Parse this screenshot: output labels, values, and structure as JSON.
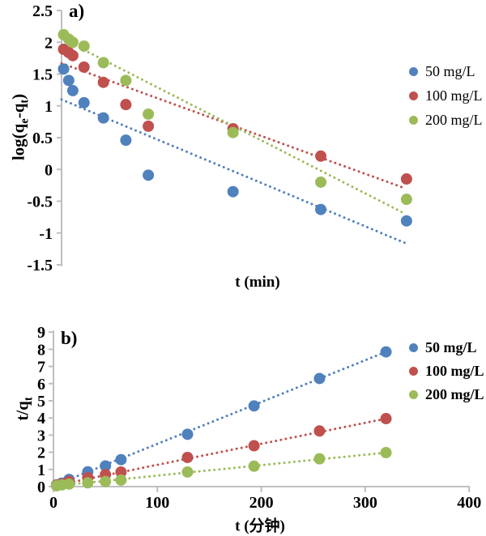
{
  "figure": {
    "background": "#ffffff",
    "text_color": "#000000",
    "axis_color": "#BFBFBF"
  },
  "chart_data": [
    {
      "id": "a",
      "type": "scatter",
      "panel_label": "a)",
      "xlabel": "t (min)",
      "ylabel": "log(qe-qt)",
      "ylabel_parts": [
        {
          "t": "log(q"
        },
        {
          "t": "e",
          "sub": true
        },
        {
          "t": "-q"
        },
        {
          "t": "t",
          "sub": true
        },
        {
          "t": ")"
        }
      ],
      "xlim": [
        0,
        400
      ],
      "ylim": [
        -1.5,
        2.5
      ],
      "grid": false,
      "xticks": [],
      "yticks": [
        {
          "v": 2.5,
          "label": "2.5"
        },
        {
          "v": 2,
          "label": "2"
        },
        {
          "v": 1.5,
          "label": "1.5"
        },
        {
          "v": 1,
          "label": "1"
        },
        {
          "v": 0.5,
          "label": "0.5"
        },
        {
          "v": 0,
          "label": "0"
        },
        {
          "v": -0.5,
          "label": "-0.5"
        },
        {
          "v": -1,
          "label": "-1"
        },
        {
          "v": -1.5,
          "label": "-1.5"
        }
      ],
      "legend_position": "right",
      "legend_bold": false,
      "series": [
        {
          "name": "50 mg/L",
          "color": "#4F81BD",
          "x": [
            2,
            7,
            11,
            22,
            41,
            63,
            85,
            168,
            254,
            338
          ],
          "y": [
            1.58,
            1.4,
            1.24,
            1.05,
            0.81,
            0.46,
            -0.09,
            -0.35,
            -0.63,
            -0.81
          ],
          "trend": {
            "x": [
              0,
              337
            ],
            "y": [
              1.1,
              -1.16
            ]
          }
        },
        {
          "name": "100 mg/L",
          "color": "#C0504D",
          "x": [
            2,
            7,
            11,
            22,
            41,
            63,
            85,
            168,
            254,
            338
          ],
          "y": [
            1.89,
            1.84,
            1.79,
            1.61,
            1.37,
            1.02,
            0.68,
            0.64,
            0.21,
            -0.15
          ],
          "trend": {
            "x": [
              0,
              337
            ],
            "y": [
              1.67,
              -0.3
            ]
          }
        },
        {
          "name": "200 mg/L",
          "color": "#9BBB59",
          "x": [
            2,
            7,
            11,
            22,
            41,
            63,
            85,
            168,
            254,
            338
          ],
          "y": [
            2.12,
            2.05,
            2.0,
            1.94,
            1.68,
            1.4,
            0.87,
            0.58,
            -0.2,
            -0.47
          ],
          "trend": {
            "x": [
              0,
              337
            ],
            "y": [
              2.06,
              -0.7
            ]
          }
        }
      ]
    },
    {
      "id": "b",
      "type": "scatter",
      "panel_label": "b)",
      "xlabel": "t (分钟)",
      "ylabel": "t/qt",
      "ylabel_parts": [
        {
          "t": "t/q"
        },
        {
          "t": "t",
          "sub": true
        }
      ],
      "xlim": [
        0,
        400
      ],
      "ylim": [
        0,
        9
      ],
      "grid": false,
      "xticks": [
        {
          "v": 0,
          "label": "0"
        },
        {
          "v": 100,
          "label": "100"
        },
        {
          "v": 200,
          "label": "200"
        },
        {
          "v": 300,
          "label": "300"
        },
        {
          "v": 400,
          "label": "400"
        }
      ],
      "yticks": [
        {
          "v": 9,
          "label": "9"
        },
        {
          "v": 8,
          "label": "8"
        },
        {
          "v": 7,
          "label": "7"
        },
        {
          "v": 6,
          "label": "6"
        },
        {
          "v": 5,
          "label": "5"
        },
        {
          "v": 4,
          "label": "4"
        },
        {
          "v": 3,
          "label": "3"
        },
        {
          "v": 2,
          "label": "2"
        },
        {
          "v": 1,
          "label": "1"
        },
        {
          "v": 0,
          "label": "0"
        }
      ],
      "legend_position": "right",
      "legend_bold": true,
      "series": [
        {
          "name": "50 mg/L",
          "color": "#4F81BD",
          "x": [
            3,
            8,
            15,
            33,
            50,
            65,
            129,
            193,
            256,
            320
          ],
          "y": [
            0.1,
            0.2,
            0.42,
            0.86,
            1.2,
            1.57,
            3.05,
            4.7,
            6.3,
            7.85
          ],
          "trend": {
            "x": [
              1,
              320
            ],
            "y": [
              0.08,
              7.85
            ]
          }
        },
        {
          "name": "100 mg/L",
          "color": "#C0504D",
          "x": [
            3,
            8,
            15,
            33,
            50,
            65,
            129,
            193,
            256,
            320
          ],
          "y": [
            0.08,
            0.15,
            0.3,
            0.52,
            0.7,
            0.85,
            1.7,
            2.38,
            3.24,
            3.96
          ],
          "trend": {
            "x": [
              1,
              320
            ],
            "y": [
              0.06,
              3.96
            ]
          }
        },
        {
          "name": "200 mg/L",
          "color": "#9BBB59",
          "x": [
            3,
            8,
            15,
            33,
            50,
            65,
            129,
            193,
            256,
            320
          ],
          "y": [
            0.05,
            0.1,
            0.15,
            0.22,
            0.3,
            0.38,
            0.85,
            1.19,
            1.62,
            1.98
          ],
          "trend": {
            "x": [
              1,
              320
            ],
            "y": [
              0.04,
              1.98
            ]
          }
        }
      ]
    }
  ]
}
